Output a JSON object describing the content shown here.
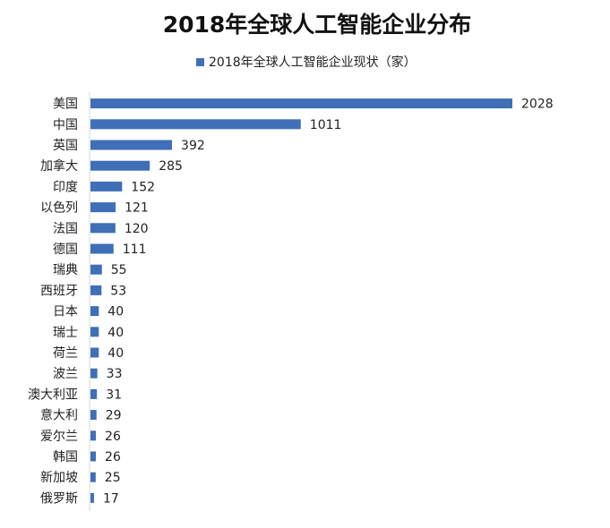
{
  "chart_data": {
    "type": "bar",
    "orientation": "horizontal",
    "title": "2018年全球人工智能企业分布",
    "categories": [
      "美国",
      "中国",
      "英国",
      "加拿大",
      "印度",
      "以色列",
      "法国",
      "德国",
      "瑞典",
      "西班牙",
      "日本",
      "瑞士",
      "荷兰",
      "波兰",
      "澳大利亚",
      "意大利",
      "爱尔兰",
      "韩国",
      "新加坡",
      "俄罗斯"
    ],
    "series": [
      {
        "name": "2018年全球人工智能企业现状（家）",
        "values": [
          2028,
          1011,
          392,
          285,
          152,
          121,
          120,
          111,
          55,
          53,
          40,
          40,
          40,
          33,
          31,
          29,
          26,
          26,
          25,
          17
        ],
        "color": "#3F6FB6"
      }
    ],
    "xlim": [
      0,
      2028
    ],
    "grid": false,
    "legend_position": "top"
  }
}
